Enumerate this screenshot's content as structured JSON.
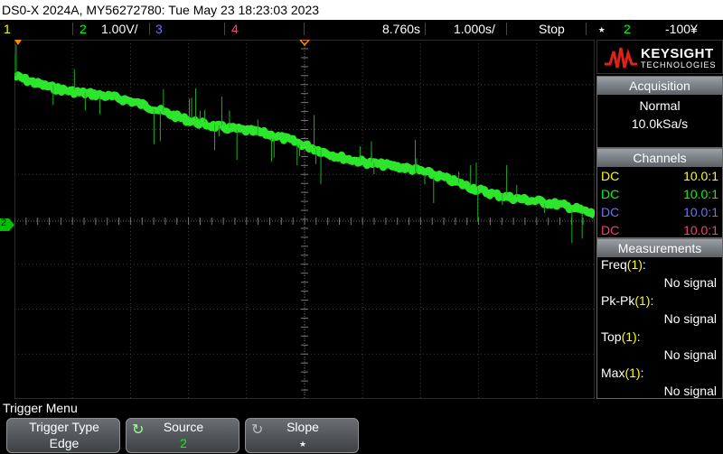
{
  "title": "DS0-X 2024A, MY56272780: Tue May 23 18:23:03 2023",
  "status": {
    "ch1": "1",
    "ch2": "2",
    "ch2_scale": "1.00V/",
    "ch3": "3",
    "ch4": "4",
    "time_offset": "8.760s",
    "time_scale": "1.000s/",
    "run_state": "Stop",
    "trigger_edge_icon": "rising-edge-icon",
    "trigger_source": "2",
    "trigger_level": "-100¥"
  },
  "colors": {
    "ch1": "#ffff00",
    "ch2": "#00ff00",
    "ch3": "#6f6fff",
    "ch4": "#ff3a7a",
    "trace": "#30ff30"
  },
  "panel": {
    "logo_line1": "KEYSIGHT",
    "logo_line2": "TECHNOLOGIES",
    "acquisition_title": "Acquisition",
    "acq_mode": "Normal",
    "acq_rate": "10.0kSa/s",
    "channels_title": "Channels",
    "channels": [
      {
        "coupling": "DC",
        "probe": "10.0:1"
      },
      {
        "coupling": "DC",
        "probe": "10.0:1"
      },
      {
        "coupling": "DC",
        "probe": "10.0:1"
      },
      {
        "coupling": "DC",
        "probe": "10.0:1"
      }
    ],
    "measurements_title": "Measurements",
    "measurements": [
      {
        "label": "Freq",
        "ch": "(1)",
        "colon": ":",
        "value": "No signal"
      },
      {
        "label": "Pk-Pk",
        "ch": "(1)",
        "colon": ":",
        "value": "No signal"
      },
      {
        "label": "Top",
        "ch": "(1)",
        "colon": ":",
        "value": "No signal"
      },
      {
        "label": "Max",
        "ch": "(1)",
        "colon": ":",
        "value": "No signal"
      }
    ]
  },
  "menu": {
    "title": "Trigger Menu",
    "softkeys": [
      {
        "label": "Trigger Type",
        "value": "Edge"
      },
      {
        "label": "Source",
        "value": "2"
      },
      {
        "label": "Slope",
        "value": "⭑"
      }
    ]
  },
  "ground_marker": "2"
}
